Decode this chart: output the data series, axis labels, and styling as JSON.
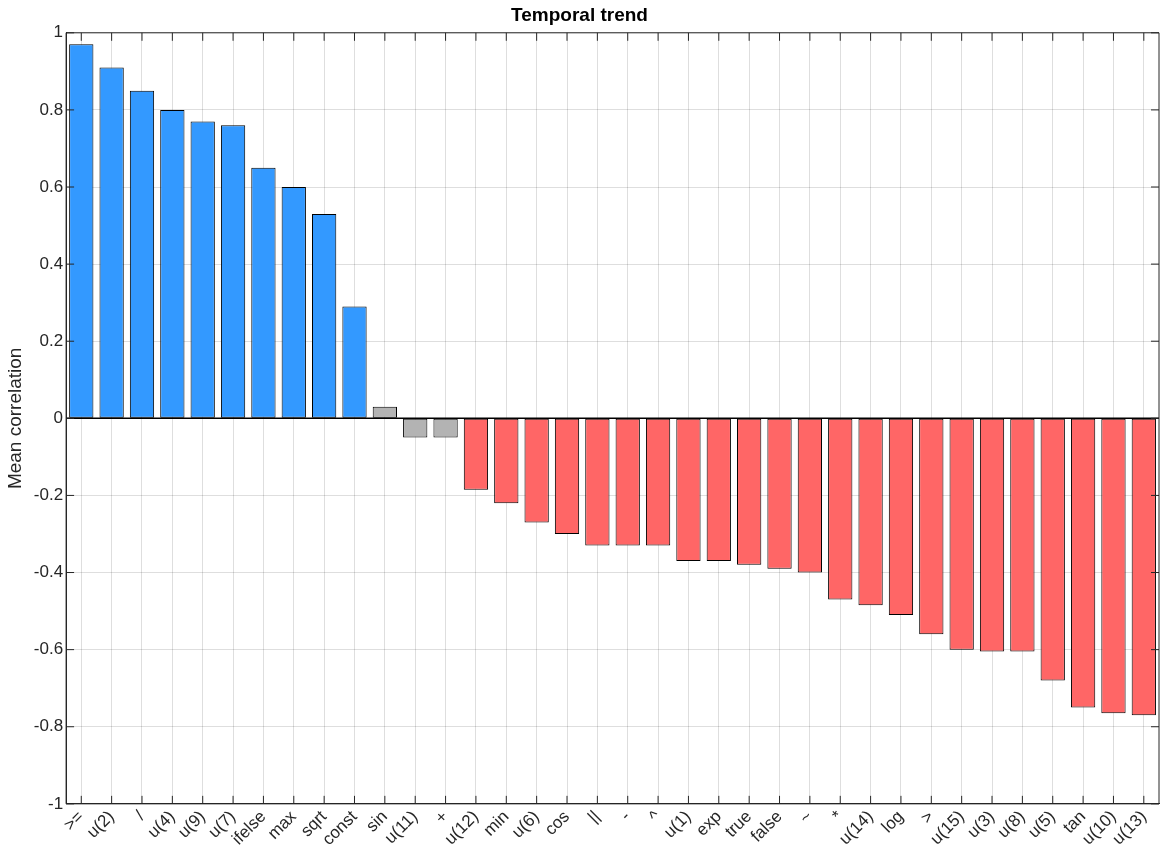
{
  "chart_data": {
    "type": "bar",
    "title": "Temporal trend",
    "ylabel": "Mean correlation",
    "categories": [
      ">=",
      "u(2)",
      "/",
      "u(4)",
      "u(9)",
      "u(7)",
      "ifelse",
      "max",
      "sqrt",
      "const",
      "sin",
      "u(11)",
      "+",
      "u(12)",
      "min",
      "u(6)",
      "cos",
      "||",
      "-",
      "^",
      "u(1)",
      "exp",
      "true",
      "false",
      "~",
      "*",
      "u(14)",
      "log",
      ">",
      "u(15)",
      "u(3)",
      "u(8)",
      "u(5)",
      "tan",
      "u(10)",
      "u(13)"
    ],
    "values": [
      0.97,
      0.91,
      0.85,
      0.8,
      0.77,
      0.76,
      0.65,
      0.6,
      0.53,
      0.29,
      0.03,
      -0.05,
      -0.05,
      -0.185,
      -0.22,
      -0.27,
      -0.3,
      -0.33,
      -0.33,
      -0.33,
      -0.37,
      -0.37,
      -0.38,
      -0.39,
      -0.4,
      -0.47,
      -0.485,
      -0.51,
      -0.56,
      -0.6,
      -0.605,
      -0.605,
      -0.68,
      -0.75,
      -0.765,
      -0.77
    ],
    "colors": [
      "#3399ff",
      "#3399ff",
      "#3399ff",
      "#3399ff",
      "#3399ff",
      "#3399ff",
      "#3399ff",
      "#3399ff",
      "#3399ff",
      "#3399ff",
      "#b3b3b3",
      "#b3b3b3",
      "#b3b3b3",
      "#ff6666",
      "#ff6666",
      "#ff6666",
      "#ff6666",
      "#ff6666",
      "#ff6666",
      "#ff6666",
      "#ff6666",
      "#ff6666",
      "#ff6666",
      "#ff6666",
      "#ff6666",
      "#ff6666",
      "#ff6666",
      "#ff6666",
      "#ff6666",
      "#ff6666",
      "#ff6666",
      "#ff6666",
      "#ff6666",
      "#ff6666",
      "#ff6666",
      "#ff6666"
    ],
    "ylim": [
      -1,
      1
    ],
    "yticks": [
      -1,
      -0.8,
      -0.6,
      -0.4,
      -0.2,
      0,
      0.2,
      0.4,
      0.6,
      0.8,
      1
    ],
    "ref_lines": [
      {
        "axis": "y",
        "value": 0,
        "color": "#000000"
      }
    ],
    "grid": true
  }
}
